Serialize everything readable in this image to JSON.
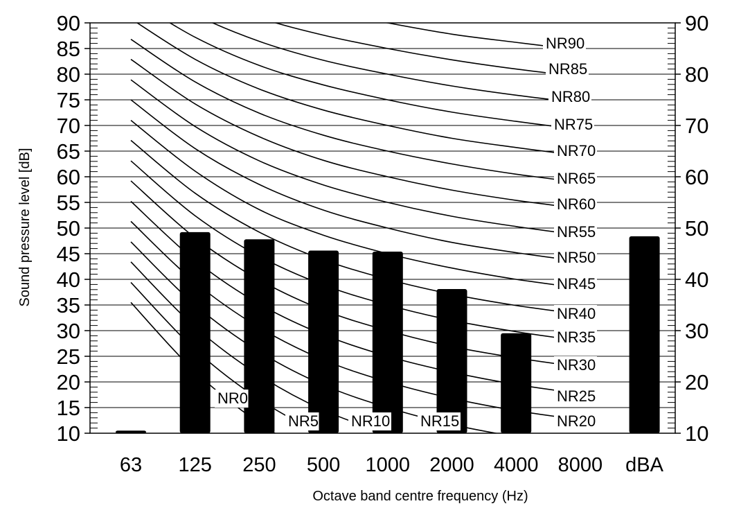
{
  "chart_data": {
    "type": "bar",
    "title": "",
    "xlabel": "Octave band centre frequency (Hz)",
    "ylabel": "Sound pressure level [dB]",
    "ylim": [
      10,
      90
    ],
    "left_ticks": [
      "90",
      "85",
      "80",
      "75",
      "70",
      "65",
      "60",
      "55",
      "50",
      "45",
      "40",
      "35",
      "30",
      "25",
      "20",
      "15",
      "10"
    ],
    "right_ticks": [
      "90",
      "80",
      "70",
      "60",
      "50",
      "40",
      "30",
      "20",
      "10"
    ],
    "categories": [
      "63",
      "125",
      "250",
      "500",
      "1000",
      "2000",
      "4000",
      "8000",
      "dBA"
    ],
    "values": [
      10.5,
      49.2,
      47.8,
      45.6,
      45.4,
      38.1,
      29.5,
      null,
      48.4
    ],
    "grid": true,
    "nr_curves": [
      {
        "label": "NR0",
        "values": [
          35.5,
          22.0,
          12.0,
          4.8,
          0,
          -3.5,
          -6.1,
          -8.0
        ]
      },
      {
        "label": "NR5",
        "values": [
          39.4,
          26.3,
          16.6,
          9.7,
          5,
          1.6,
          -1.0,
          -2.8
        ]
      },
      {
        "label": "NR10",
        "values": [
          43.4,
          30.7,
          21.3,
          14.5,
          10,
          6.6,
          4.2,
          2.3
        ]
      },
      {
        "label": "NR15",
        "values": [
          47.3,
          35.0,
          25.9,
          19.4,
          15,
          11.7,
          9.3,
          7.4
        ]
      },
      {
        "label": "NR20",
        "values": [
          51.3,
          39.4,
          30.6,
          24.3,
          20,
          16.8,
          14.4,
          12.6
        ]
      },
      {
        "label": "NR25",
        "values": [
          55.2,
          43.7,
          35.2,
          29.2,
          25,
          21.9,
          19.5,
          17.7
        ]
      },
      {
        "label": "NR30",
        "values": [
          59.2,
          48.1,
          39.9,
          34.0,
          30,
          26.9,
          24.7,
          22.9
        ]
      },
      {
        "label": "NR35",
        "values": [
          63.1,
          52.4,
          44.5,
          38.9,
          35,
          32.0,
          29.8,
          28.0
        ]
      },
      {
        "label": "NR40",
        "values": [
          67.1,
          56.8,
          49.2,
          43.8,
          40,
          37.1,
          34.9,
          33.2
        ]
      },
      {
        "label": "NR45",
        "values": [
          71.0,
          61.1,
          53.6,
          48.6,
          45,
          42.2,
          40.0,
          38.3
        ]
      },
      {
        "label": "NR50",
        "values": [
          75.0,
          65.5,
          58.5,
          53.5,
          50,
          47.2,
          45.2,
          43.5
        ]
      },
      {
        "label": "NR55",
        "values": [
          78.9,
          69.8,
          63.1,
          58.4,
          55,
          52.3,
          50.3,
          48.6
        ]
      },
      {
        "label": "NR60",
        "values": [
          82.9,
          74.2,
          67.8,
          63.2,
          60,
          57.4,
          55.4,
          53.8
        ]
      },
      {
        "label": "NR65",
        "values": [
          86.8,
          78.5,
          72.4,
          68.1,
          65,
          62.5,
          60.5,
          58.9
        ]
      },
      {
        "label": "NR70",
        "values": [
          90.8,
          82.9,
          77.1,
          73.0,
          70,
          67.5,
          65.7,
          64.1
        ]
      },
      {
        "label": "NR75",
        "values": [
          94.7,
          87.2,
          81.7,
          77.9,
          75,
          72.6,
          70.8,
          69.2
        ]
      },
      {
        "label": "NR80",
        "values": [
          98.7,
          91.6,
          86.4,
          82.7,
          80,
          77.7,
          75.9,
          74.4
        ]
      },
      {
        "label": "NR85",
        "values": [
          102.6,
          95.9,
          91.0,
          87.6,
          85,
          82.8,
          81.0,
          79.5
        ]
      },
      {
        "label": "NR90",
        "values": [
          106.6,
          100.3,
          95.7,
          92.5,
          90,
          87.8,
          86.2,
          84.7
        ]
      }
    ],
    "colors": {
      "bar": "#000000",
      "grid": "#000000",
      "curve": "#000000"
    }
  }
}
